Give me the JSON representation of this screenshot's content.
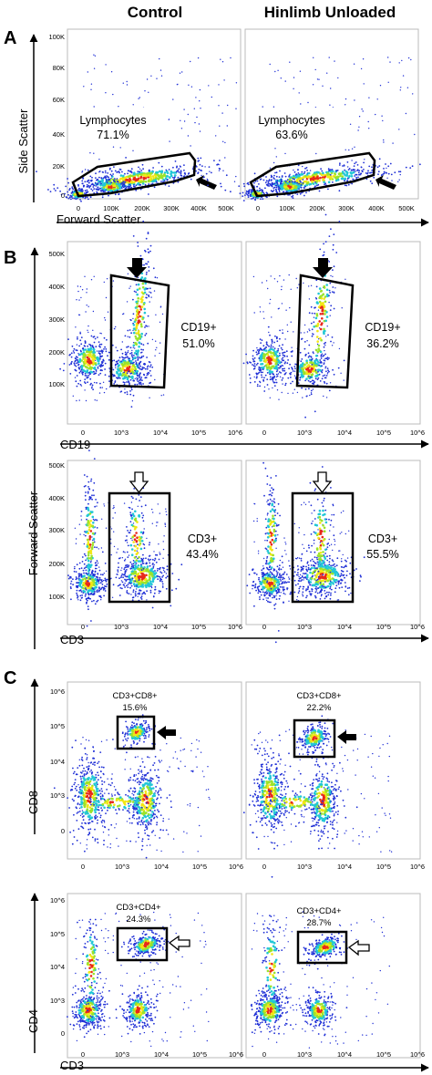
{
  "figure": {
    "column_titles": [
      "Control",
      "Hinlimb Unloaded"
    ],
    "panel_letters": [
      "A",
      "B",
      "C"
    ],
    "colors": {
      "density_low": "#1f2fd6",
      "density_mid": "#22c7d6",
      "density_mid2": "#9be32a",
      "density_high": "#f3e614",
      "density_peak": "#e8281a",
      "gate": "#000000",
      "filled_arrow": "#000000",
      "open_arrow": "#ffffff"
    }
  },
  "chart_data": [
    {
      "id": "A",
      "type": "scatter",
      "title": "",
      "xlabel": "Forward Scatter",
      "ylabel": "Side Scatter",
      "xlim": [
        0,
        262144
      ],
      "ylim": [
        0,
        105000
      ],
      "x_ticks": [
        "0",
        "100K",
        "200K",
        "300K",
        "400K",
        "500K"
      ],
      "y_ticks": [
        "0",
        "20K",
        "40K",
        "60K",
        "80K",
        "100K"
      ],
      "panels": [
        {
          "column": "Control",
          "gate_label": "Lymphocytes",
          "gate_value": "71.1%",
          "arrow": "filled"
        },
        {
          "column": "Hinlimb Unloaded",
          "gate_label": "Lymphocytes",
          "gate_value": "63.6%",
          "arrow": "filled"
        }
      ]
    },
    {
      "id": "B-CD19",
      "type": "scatter",
      "title": "",
      "xlabel": "CD19",
      "ylabel": "Forward Scatter",
      "y_ticks": [
        "100K",
        "200K",
        "300K",
        "400K",
        "500K"
      ],
      "x_ticks": [
        "0",
        "10^3",
        "10^4",
        "10^5",
        "10^6"
      ],
      "panels": [
        {
          "column": "Control",
          "gate_label": "CD19+",
          "gate_value": "51.0%",
          "arrow": "filled"
        },
        {
          "column": "Hinlimb Unloaded",
          "gate_label": "CD19+",
          "gate_value": "36.2%",
          "arrow": "filled"
        }
      ]
    },
    {
      "id": "B-CD3",
      "type": "scatter",
      "title": "",
      "xlabel": "CD3",
      "ylabel": "Forward Scatter",
      "y_ticks": [
        "100K",
        "200K",
        "300K",
        "400K",
        "500K"
      ],
      "x_ticks": [
        "0",
        "10^3",
        "10^4",
        "10^5",
        "10^6"
      ],
      "panels": [
        {
          "column": "Control",
          "gate_label": "CD3+",
          "gate_value": "43.4%",
          "arrow": "open"
        },
        {
          "column": "Hinlimb Unloaded",
          "gate_label": "CD3+",
          "gate_value": "55.5%",
          "arrow": "open"
        }
      ]
    },
    {
      "id": "C-CD8",
      "type": "scatter",
      "title": "",
      "xlabel": "CD3",
      "ylabel": "CD8",
      "y_ticks": [
        "0",
        "10^3",
        "10^4",
        "10^5",
        "10^6"
      ],
      "x_ticks": [
        "0",
        "10^3",
        "10^4",
        "10^5",
        "10^6"
      ],
      "panels": [
        {
          "column": "Control",
          "gate_label": "CD3+CD8+",
          "gate_value": "15.6%",
          "arrow": "filled"
        },
        {
          "column": "Hinlimb Unloaded",
          "gate_label": "CD3+CD8+",
          "gate_value": "22.2%",
          "arrow": "filled"
        }
      ]
    },
    {
      "id": "C-CD4",
      "type": "scatter",
      "title": "",
      "xlabel": "CD3",
      "ylabel": "CD4",
      "y_ticks": [
        "0",
        "10^3",
        "10^4",
        "10^5",
        "10^6"
      ],
      "x_ticks": [
        "0",
        "10^3",
        "10^4",
        "10^5",
        "10^6"
      ],
      "panels": [
        {
          "column": "Control",
          "gate_label": "CD3+CD4+",
          "gate_value": "24.3%",
          "arrow": "open"
        },
        {
          "column": "Hinlimb Unloaded",
          "gate_label": "CD3+CD4+",
          "gate_value": "28.7%",
          "arrow": "open"
        }
      ]
    }
  ]
}
